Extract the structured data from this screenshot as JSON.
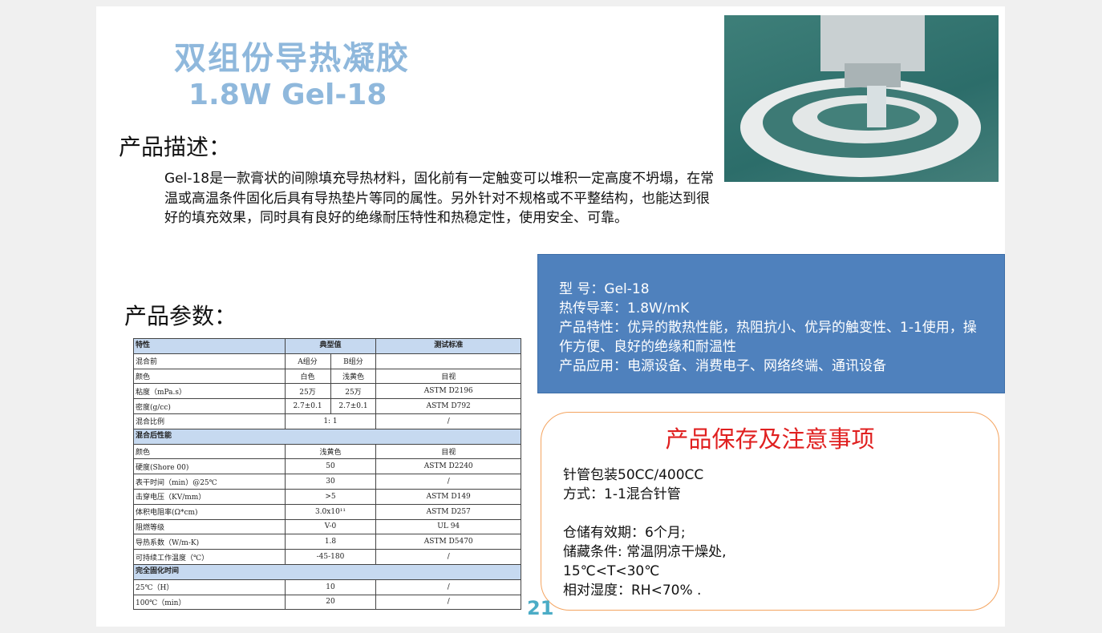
{
  "title": "双组份导热凝胶",
  "subtitle": "1.8W Gel-18",
  "desc_heading": "产品描述：",
  "description": "Gel-18是一款膏状的间隙填充导热材料，固化前有一定触变可以堆积一定高度不坍塌，在常温或高温条件固化后具有导热垫片等同的属性。另外针对不规格或不平整结构，也能达到很好的填充效果，同时具有良好的绝缘耐压特性和热稳定性，使用安全、可靠。",
  "params_heading": "产品参数：",
  "info_box": [
    "型  号：Gel-18",
    "热传导率：1.8W/mK",
    "产品特性：优异的散热性能，热阻抗小、优异的触变性、1-1使用，操作方便、良好的绝缘和耐温性",
    "产品应用：电源设备、消费电子、网络终端、通讯设备"
  ],
  "storage": {
    "title": "产品保存及注意事项",
    "lines": [
      "针管包装50CC/400CC",
      "方式：1-1混合针管",
      "",
      "仓储有效期：6个月;",
      "储藏条件: 常温阴凉干燥处,",
      "15℃<T<30℃",
      "相对湿度：RH<70% ."
    ]
  },
  "page_number": "21",
  "table": {
    "header": [
      "特性",
      "典型值",
      "测试标准"
    ],
    "rows": [
      {
        "type": "split",
        "cells": [
          "混合前",
          "A组分",
          "B组分",
          ""
        ]
      },
      {
        "type": "split",
        "cells": [
          "颜色",
          "白色",
          "浅黄色",
          "目视"
        ]
      },
      {
        "type": "split",
        "cells": [
          "粘度（mPa.s）",
          "25万",
          "25万",
          "ASTM D2196"
        ]
      },
      {
        "type": "split",
        "cells": [
          "密度(g/cc)",
          "2.7±0.1",
          "2.7±0.1",
          "ASTM D792"
        ]
      },
      {
        "type": "merged",
        "cells": [
          "混合比例",
          "1: 1",
          "/"
        ]
      },
      {
        "type": "section",
        "cells": [
          "混合后性能"
        ]
      },
      {
        "type": "merged",
        "cells": [
          "颜色",
          "浅黄色",
          "目视"
        ]
      },
      {
        "type": "merged",
        "cells": [
          "硬度(Shore 00)",
          "50",
          "ASTM D2240"
        ]
      },
      {
        "type": "merged",
        "cells": [
          "表干时间（min）@25℃",
          "30",
          "/"
        ]
      },
      {
        "type": "merged",
        "cells": [
          "击穿电压（KV/mm）",
          ">5",
          "ASTM D149"
        ]
      },
      {
        "type": "merged",
        "cells": [
          "体积电阻率(Ω*cm)",
          "3.0x10¹¹",
          "ASTM D257"
        ]
      },
      {
        "type": "merged",
        "cells": [
          "阻燃等级",
          "V-0",
          "UL 94"
        ]
      },
      {
        "type": "merged",
        "cells": [
          "导热系数（W/m-K)",
          "1.8",
          "ASTM D5470"
        ]
      },
      {
        "type": "merged",
        "cells": [
          "可持续工作温度（℃）",
          "-45-180",
          "/"
        ]
      },
      {
        "type": "section",
        "cells": [
          "完全固化时间"
        ]
      },
      {
        "type": "merged",
        "cells": [
          "25℃（H）",
          "10",
          "/"
        ]
      },
      {
        "type": "merged",
        "cells": [
          "100℃（min）",
          "20",
          "/"
        ]
      }
    ]
  }
}
